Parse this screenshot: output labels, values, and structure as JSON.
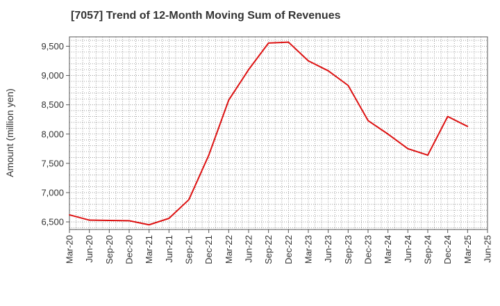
{
  "chart_data": {
    "type": "line",
    "title": "[7057]  Trend of 12-Month Moving Sum of Revenues",
    "xlabel": "",
    "ylabel": "Amount (million yen)",
    "x_ticks": [
      "Mar-20",
      "Jun-20",
      "Sep-20",
      "Dec-20",
      "Mar-21",
      "Jun-21",
      "Sep-21",
      "Dec-21",
      "Mar-22",
      "Jun-22",
      "Sep-22",
      "Dec-22",
      "Mar-23",
      "Jun-23",
      "Sep-23",
      "Dec-23",
      "Mar-24",
      "Jun-24",
      "Sep-24",
      "Dec-24",
      "Mar-25",
      "Jun-25"
    ],
    "y_ticks": [
      6500,
      7000,
      7500,
      8000,
      8500,
      9000,
      9500
    ],
    "y_tick_labels": [
      "6,500",
      "7,000",
      "7,500",
      "8,000",
      "8,500",
      "9,000",
      "9,500"
    ],
    "ylim": [
      6370,
      9660
    ],
    "grid": true,
    "series": [
      {
        "color": "#dd1111",
        "x": [
          "Mar-20",
          "Jun-20",
          "Sep-20",
          "Dec-20",
          "Mar-21",
          "Jun-21",
          "Sep-21",
          "Dec-21",
          "Mar-22",
          "Jun-22",
          "Sep-22",
          "Dec-22",
          "Mar-23",
          "Jun-23",
          "Sep-23",
          "Dec-23",
          "Mar-24",
          "Jun-24",
          "Sep-24",
          "Dec-24",
          "Mar-25"
        ],
        "values": [
          6620,
          6530,
          6525,
          6520,
          6450,
          6560,
          6880,
          7640,
          8580,
          9100,
          9555,
          9570,
          9250,
          9080,
          8830,
          8230,
          8000,
          7750,
          7640,
          8300,
          8130
        ]
      }
    ]
  }
}
